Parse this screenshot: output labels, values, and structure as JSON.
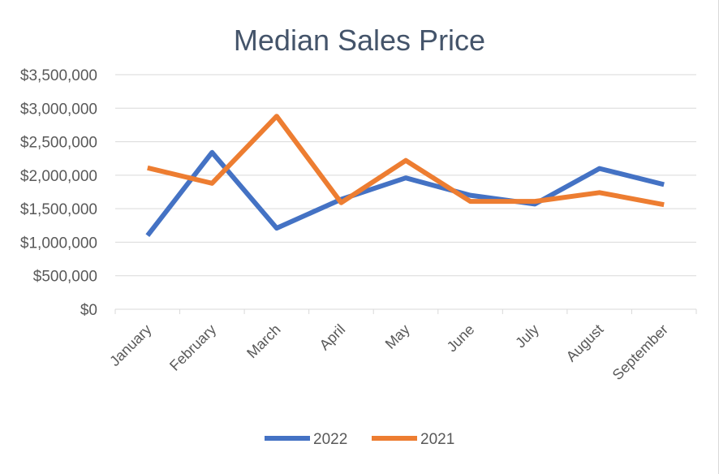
{
  "chart_data": {
    "type": "line",
    "title": "Median Sales Price",
    "xlabel": "",
    "ylabel": "",
    "categories": [
      "January",
      "February",
      "March",
      "April",
      "May",
      "June",
      "July",
      "August",
      "September"
    ],
    "y_ticks": [
      "$0",
      "$500,000",
      "$1,000,000",
      "$1,500,000",
      "$2,000,000",
      "$2,500,000",
      "$3,000,000",
      "$3,500,000"
    ],
    "ylim": [
      0,
      3500000
    ],
    "grid": true,
    "legend_position": "bottom",
    "series": [
      {
        "name": "2022",
        "color": "#4472c4",
        "values": [
          1100000,
          2340000,
          1210000,
          1640000,
          1960000,
          1700000,
          1570000,
          2100000,
          1860000
        ]
      },
      {
        "name": "2021",
        "color": "#ed7d31",
        "values": [
          2110000,
          1880000,
          2880000,
          1590000,
          2220000,
          1610000,
          1610000,
          1740000,
          1560000
        ]
      }
    ]
  }
}
